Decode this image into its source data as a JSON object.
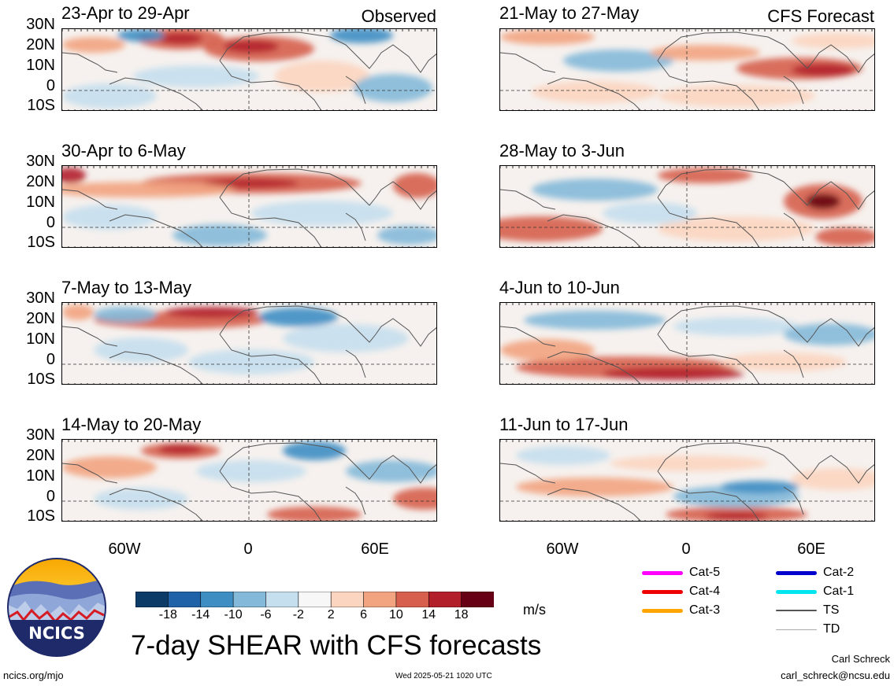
{
  "headers": {
    "observed": "Observed",
    "forecast": "CFS Forecast"
  },
  "observed_panels": [
    {
      "title": "23-Apr to 29-Apr"
    },
    {
      "title": "30-Apr to 6-May"
    },
    {
      "title": "7-May to 13-May"
    },
    {
      "title": "14-May to 20-May"
    }
  ],
  "forecast_panels": [
    {
      "title": "21-May to 27-May"
    },
    {
      "title": "28-May to 3-Jun"
    },
    {
      "title": "4-Jun to 10-Jun"
    },
    {
      "title": "11-Jun to 17-Jun"
    }
  ],
  "lat_labels": [
    "30N",
    "20N",
    "10N",
    "0",
    "10S"
  ],
  "lon_labels": [
    "60W",
    "0",
    "60E"
  ],
  "colorbar": {
    "ticks": [
      "-18",
      "-14",
      "-10",
      "-6",
      "-2",
      "2",
      "6",
      "10",
      "14",
      "18"
    ],
    "colors": [
      "#0b3b66",
      "#1f62a8",
      "#3e8ec4",
      "#84b9d9",
      "#c5dfee",
      "#f7f7f7",
      "#fcd5c0",
      "#f2a481",
      "#d6604d",
      "#b21f2b",
      "#670014"
    ],
    "units": "m/s"
  },
  "track_legend": [
    {
      "label": "Cat-5",
      "color": "#ff00ff"
    },
    {
      "label": "Cat-4",
      "color": "#ee0000"
    },
    {
      "label": "Cat-3",
      "color": "#ffa500"
    },
    {
      "label": "Cat-2",
      "color": "#0000cc"
    },
    {
      "label": "Cat-1",
      "color": "#00e5ee"
    },
    {
      "label": "TS",
      "color": "#555555"
    },
    {
      "label": "TD",
      "color": "#aaaaaa"
    }
  ],
  "main_title": "7-day SHEAR with CFS forecasts",
  "logo_text": "NCICS",
  "footer": {
    "url": "ncics.org/mjo",
    "timestamp": "Wed 2025-05-21 1020 UTC",
    "author": "Carl Schreck",
    "email": "carl_schreck@ncsu.edu"
  }
}
